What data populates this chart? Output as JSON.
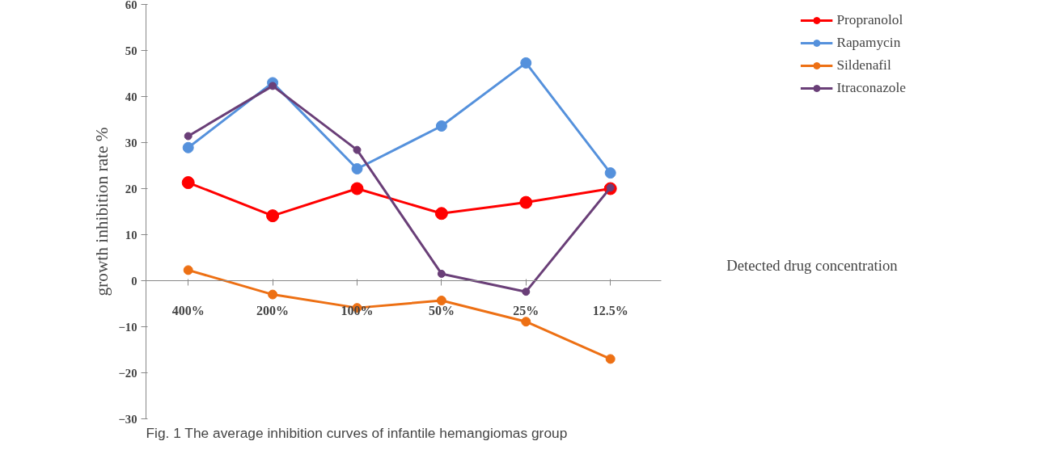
{
  "chart_data": {
    "type": "line",
    "ylabel": "growth inhibition rate %",
    "xlabel": "Detected drug concentration",
    "categories": [
      "400%",
      "200%",
      "100%",
      "50%",
      "25%",
      "12.5%"
    ],
    "series": [
      {
        "name": "Propranolol",
        "color": "#ff0000",
        "values": [
          21.3,
          14.1,
          20,
          14.6,
          17,
          20
        ]
      },
      {
        "name": "Rapamycin",
        "color": "#5591dc",
        "values": [
          28.9,
          43,
          24.3,
          33.6,
          47.3,
          23.4
        ]
      },
      {
        "name": "Sildenafil",
        "color": "#ed7014",
        "values": [
          2.3,
          -3,
          -5.9,
          -4.3,
          -8.9,
          -17
        ]
      },
      {
        "name": "Itraconazole",
        "color": "#6a3f78",
        "values": [
          31.4,
          42.3,
          28.4,
          1.5,
          -2.4,
          20.2
        ]
      }
    ],
    "ylim": [
      -30,
      60
    ],
    "yticks": [
      -30,
      -20,
      -10,
      0,
      10,
      20,
      30,
      40,
      50,
      60
    ],
    "grid": false,
    "legend": "right",
    "marker": "circle",
    "line_style": "solid",
    "annotations": [
      "Fig. 1 The average inhibition curves of infantile hemangiomas group"
    ]
  }
}
